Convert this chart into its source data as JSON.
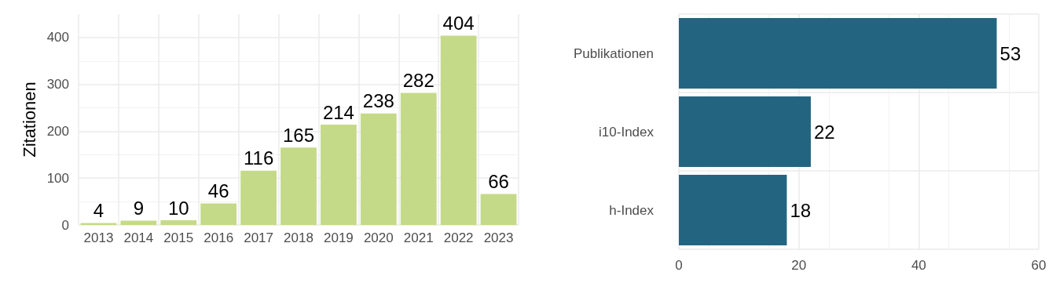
{
  "chart_data": [
    {
      "type": "bar",
      "ylabel": "Zitationen",
      "categories": [
        "2013",
        "2014",
        "2015",
        "2016",
        "2017",
        "2018",
        "2019",
        "2020",
        "2021",
        "2022",
        "2023"
      ],
      "values": [
        4,
        9,
        10,
        46,
        116,
        165,
        214,
        238,
        282,
        404,
        66
      ],
      "color": "#c5da88",
      "ylim": [
        0,
        450
      ],
      "yticks": [
        0,
        100,
        200,
        300,
        400
      ],
      "grid": true,
      "data_labels": true
    },
    {
      "type": "bar",
      "orientation": "horizontal",
      "categories": [
        "Publikationen",
        "i10-Index",
        "h-Index"
      ],
      "values": [
        53,
        22,
        18
      ],
      "color": "#236580",
      "xlim": [
        0,
        60
      ],
      "xticks": [
        0,
        20,
        40,
        60
      ],
      "grid": true,
      "data_labels": true
    }
  ]
}
